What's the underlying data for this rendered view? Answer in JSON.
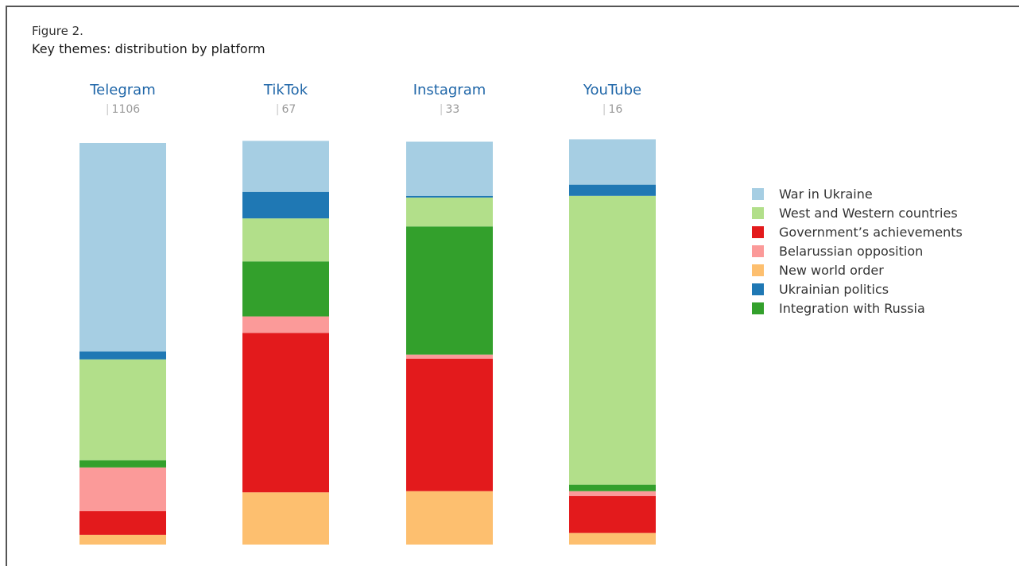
{
  "figure": {
    "label": "Figure 2.",
    "title": "Key themes: distribution by platform"
  },
  "colors": {
    "accent_text": "#1f66a8",
    "count_text": "#9a9a9a"
  },
  "chart_data": {
    "type": "bar",
    "stacked": true,
    "normalized": true,
    "categories": [
      "Telegram",
      "TikTok",
      "Instagram",
      "YouTube"
    ],
    "counts": [
      "1106",
      "67",
      "33",
      "16"
    ],
    "series": [
      {
        "name": "New world order",
        "color": "#fdbf6f",
        "values": [
          2.4,
          13.0,
          13.3,
          2.9
        ]
      },
      {
        "name": "Government’s achievements",
        "color": "#e31a1c",
        "values": [
          5.9,
          39.7,
          33.0,
          9.2
        ]
      },
      {
        "name": "Belarussian opposition",
        "color": "#fb9a99",
        "values": [
          10.9,
          4.1,
          1.0,
          1.2
        ]
      },
      {
        "name": "Integration with Russia",
        "color": "#33a02c",
        "values": [
          1.8,
          13.7,
          31.9,
          1.6
        ]
      },
      {
        "name": "West and Western countries",
        "color": "#b2df8a",
        "values": [
          25.1,
          10.7,
          7.2,
          71.9
        ]
      },
      {
        "name": "Ukrainian politics",
        "color": "#1f78b4",
        "values": [
          2.0,
          6.6,
          0.4,
          2.8
        ]
      },
      {
        "name": "War in Ukraine",
        "color": "#a6cee3",
        "values": [
          51.9,
          12.7,
          13.5,
          11.3
        ]
      }
    ],
    "legend": [
      {
        "name": "War in Ukraine",
        "color": "#a6cee3"
      },
      {
        "name": "West and Western countries",
        "color": "#b2df8a"
      },
      {
        "name": "Government’s achievements",
        "color": "#e31a1c"
      },
      {
        "name": "Belarussian opposition",
        "color": "#fb9a99"
      },
      {
        "name": "New world order",
        "color": "#fdbf6f"
      },
      {
        "name": "Ukrainian politics",
        "color": "#1f78b4"
      },
      {
        "name": "Integration with Russia",
        "color": "#33a02c"
      }
    ],
    "legend_position": "right",
    "ylim": [
      0,
      100
    ],
    "grid": false,
    "xlabel": "",
    "ylabel": ""
  }
}
